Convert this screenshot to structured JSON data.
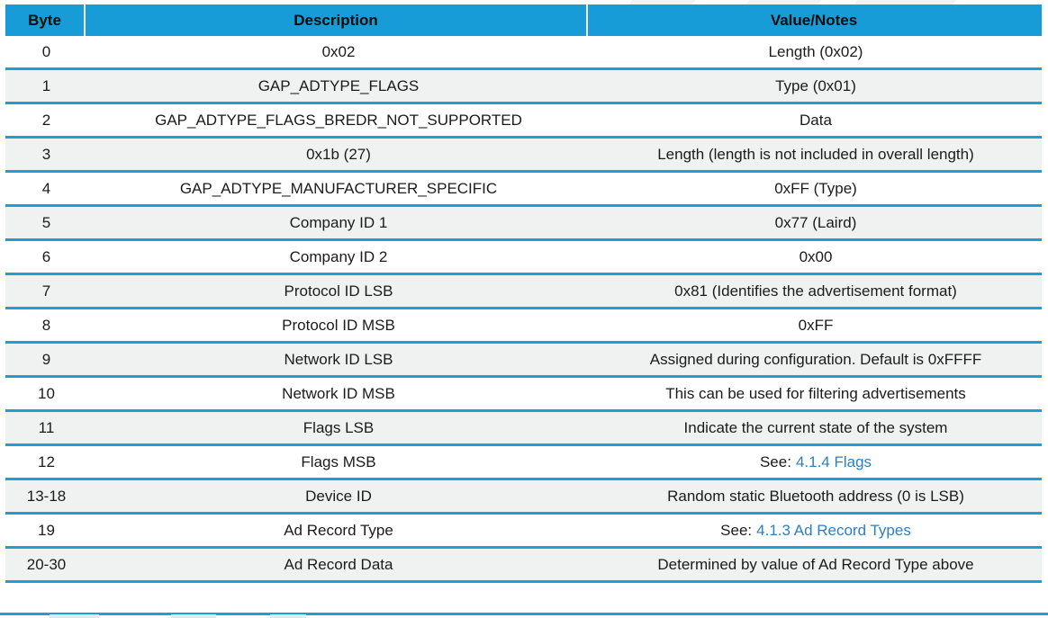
{
  "table": {
    "columns": [
      {
        "label": "Byte"
      },
      {
        "label": "Description"
      },
      {
        "label": "Value/Notes"
      }
    ],
    "rows": [
      {
        "byte": "0",
        "description": "0x02",
        "value": "Length (0x02)"
      },
      {
        "byte": "1",
        "description": "GAP_ADTYPE_FLAGS",
        "value": "Type (0x01)"
      },
      {
        "byte": "2",
        "description": "GAP_ADTYPE_FLAGS_BREDR_NOT_SUPPORTED",
        "value": "Data"
      },
      {
        "byte": "3",
        "description": "0x1b (27)",
        "value": "Length (length is not included in overall length)"
      },
      {
        "byte": "4",
        "description": "GAP_ADTYPE_MANUFACTURER_SPECIFIC",
        "value": "0xFF (Type)"
      },
      {
        "byte": "5",
        "description": "Company ID 1",
        "value": "0x77 (Laird)"
      },
      {
        "byte": "6",
        "description": "Company ID 2",
        "value": "0x00"
      },
      {
        "byte": "7",
        "description": "Protocol ID LSB",
        "value": "0x81 (Identifies the advertisement format)"
      },
      {
        "byte": "8",
        "description": "Protocol ID MSB",
        "value": "0xFF"
      },
      {
        "byte": "9",
        "description": "Network ID LSB",
        "value": "Assigned during configuration. Default is 0xFFFF"
      },
      {
        "byte": "10",
        "description": "Network ID MSB",
        "value": "This can be used for filtering advertisements"
      },
      {
        "byte": "11",
        "description": "Flags LSB",
        "value": "Indicate the current state of the system"
      },
      {
        "byte": "12",
        "description": "Flags MSB",
        "value_prefix": "See:",
        "link": "4.1.4 Flags"
      },
      {
        "byte": "13-18",
        "description": "Device ID",
        "value": "Random static Bluetooth address (0 is LSB)"
      },
      {
        "byte": "19",
        "description": "Ad Record Type",
        "value_prefix": "See:",
        "link": "4.1.3 Ad Record Types"
      },
      {
        "byte": "20-30",
        "description": "Ad Record Data",
        "value": "Determined by value of Ad Record Type above"
      }
    ]
  },
  "colors": {
    "header_bg": "#189cd8",
    "separator_line": "#1f9ed6",
    "alt_row_bg": "#f0f1f1",
    "link_text": "#2c7fc0",
    "body_text": "#1b1b1b"
  }
}
